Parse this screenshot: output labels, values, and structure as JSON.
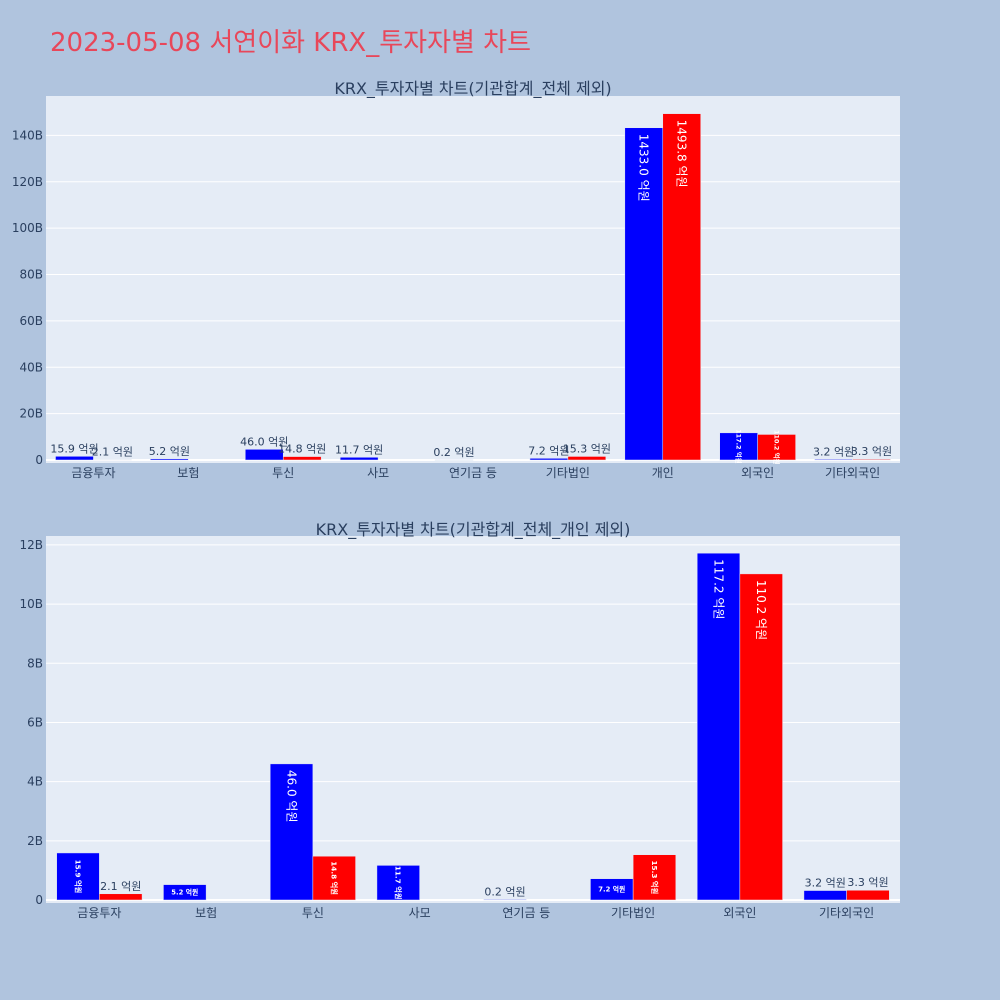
{
  "page_title": "2023-05-08 서연이화 KRX_투자자별 차트",
  "colors": {
    "background": "#b0c4de",
    "plot_bg": "#e5ecf6",
    "title": "#e8475a",
    "series_a": "#0000ff",
    "series_b": "#ff0000"
  },
  "chart_data": [
    {
      "type": "bar",
      "title": "KRX_투자자별 차트(기관합계_전체 제외)",
      "categories": [
        "금융투자",
        "보험",
        "투신",
        "사모",
        "연기금 등",
        "기타법인",
        "개인",
        "외국인",
        "기타외국인"
      ],
      "series": [
        {
          "values": [
            1.59,
            0.52,
            4.6,
            1.17,
            0.02,
            0.72,
            143.3,
            11.72,
            0.32
          ],
          "labels": [
            "15.9 억원",
            "5.2 억원",
            "46.0 억원",
            "11.7 억원",
            "0.2 억원",
            "7.2 억원",
            "1433.0 억원",
            "117.2 억원",
            "3.2 억원"
          ]
        },
        {
          "values": [
            0.21,
            null,
            1.48,
            null,
            null,
            1.53,
            149.38,
            11.02,
            0.33
          ],
          "labels": [
            "2.1 억원",
            "",
            "14.8 억원",
            "",
            "",
            "15.3 억원",
            "1493.8 억원",
            "110.2 억원",
            "3.3 억원"
          ]
        }
      ],
      "yticks": [
        0,
        20,
        40,
        60,
        80,
        100,
        120,
        140
      ],
      "ytick_labels": [
        "0",
        "20B",
        "40B",
        "60B",
        "80B",
        "100B",
        "120B",
        "140B"
      ],
      "ylim": [
        0,
        157
      ],
      "grid": true
    },
    {
      "type": "bar",
      "title": "KRX_투자자별 차트(기관합계_전체_개인 제외)",
      "categories": [
        "금융투자",
        "보험",
        "투신",
        "사모",
        "연기금 등",
        "기타법인",
        "외국인",
        "기타외국인"
      ],
      "series": [
        {
          "values": [
            1.59,
            0.52,
            4.6,
            1.17,
            0.02,
            0.72,
            11.72,
            0.32
          ],
          "labels": [
            "15.9 억원",
            "5.2 억원",
            "46.0 억원",
            "11.7 억원",
            "0.2 억원",
            "7.2 억원",
            "117.2 억원",
            "3.2 억원"
          ]
        },
        {
          "values": [
            0.21,
            null,
            1.48,
            null,
            null,
            1.53,
            11.02,
            0.33
          ],
          "labels": [
            "2.1 억원",
            "",
            "14.8 억원",
            "",
            "",
            "15.3 억원",
            "110.2 억원",
            "3.3 억원"
          ]
        }
      ],
      "yticks": [
        0,
        2,
        4,
        6,
        8,
        10,
        12
      ],
      "ytick_labels": [
        "0",
        "2B",
        "4B",
        "6B",
        "8B",
        "10B",
        "12B"
      ],
      "ylim": [
        0,
        12.3
      ],
      "grid": true
    }
  ]
}
